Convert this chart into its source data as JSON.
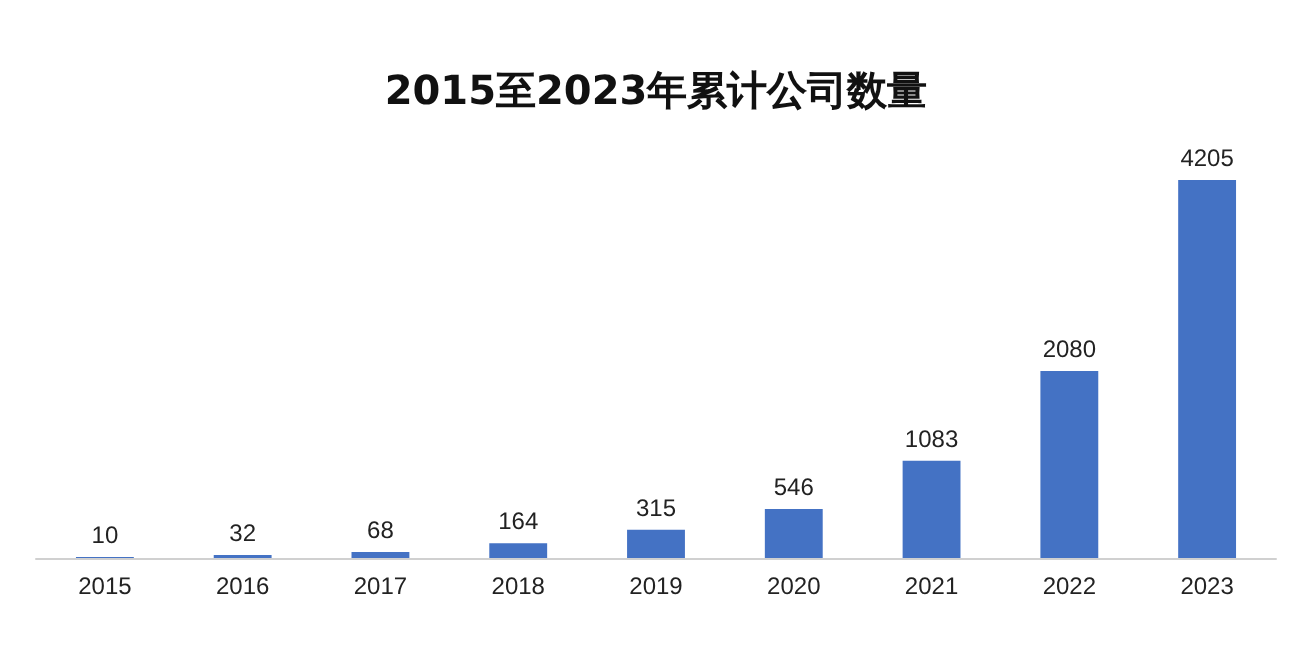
{
  "chart_data": {
    "type": "bar",
    "title": "2015至2023年累计公司数量",
    "categories": [
      "2015",
      "2016",
      "2017",
      "2018",
      "2019",
      "2020",
      "2021",
      "2022",
      "2023"
    ],
    "values": [
      10,
      32,
      68,
      164,
      315,
      546,
      1083,
      2080,
      4205
    ],
    "color": "#4472c4",
    "data_labels": true
  }
}
